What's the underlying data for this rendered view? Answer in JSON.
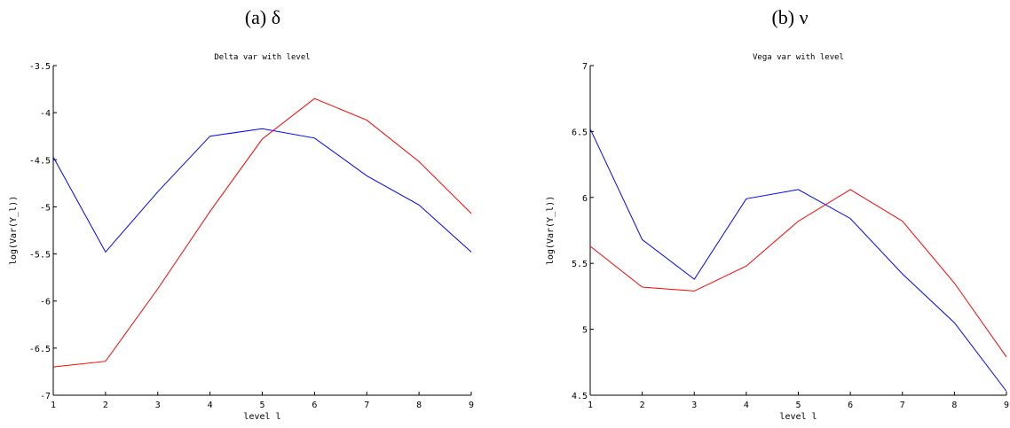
{
  "panels": [
    {
      "caption": "(a) δ",
      "chart_data": {
        "type": "line",
        "title": "Delta var with level",
        "xlabel": "level l",
        "ylabel": "log(Var(Y_l))",
        "x": [
          1,
          2,
          3,
          4,
          5,
          6,
          7,
          8,
          9
        ],
        "xlim": [
          1,
          9
        ],
        "ylim": [
          -7,
          -3.5
        ],
        "xticks": [
          "1",
          "2",
          "3",
          "4",
          "5",
          "6",
          "7",
          "8",
          "9"
        ],
        "yticks": [
          -7,
          -6.5,
          -6,
          -5.5,
          -5,
          -4.5,
          -4,
          -3.5
        ],
        "ytick_labels": [
          "-7",
          "-6.5",
          "-6",
          "-5.5",
          "-5",
          "-4.5",
          "-4",
          "-3.5"
        ],
        "grid": false,
        "series": [
          {
            "color": "#0000ff",
            "values": [
              -4.47,
              -5.48,
              -4.84,
              -4.25,
              -4.17,
              -4.27,
              -4.67,
              -4.98,
              -5.48
            ]
          },
          {
            "color": "#ff0000",
            "values": [
              -6.7,
              -6.64,
              -5.87,
              -5.05,
              -4.28,
              -3.85,
              -4.08,
              -4.52,
              -5.07
            ]
          }
        ]
      }
    },
    {
      "caption": "(b) ν",
      "chart_data": {
        "type": "line",
        "title": "Vega var with level",
        "xlabel": "level l",
        "ylabel": "log(Var(Y_l))",
        "x": [
          1,
          2,
          3,
          4,
          5,
          6,
          7,
          8,
          9
        ],
        "xlim": [
          1,
          9
        ],
        "ylim": [
          4.5,
          7
        ],
        "xticks": [
          "1",
          "2",
          "3",
          "4",
          "5",
          "6",
          "7",
          "8",
          "9"
        ],
        "yticks": [
          4.5,
          5,
          5.5,
          6,
          6.5,
          7
        ],
        "ytick_labels": [
          "4.5",
          "5",
          "5.5",
          "6",
          "6.5",
          "7"
        ],
        "grid": false,
        "series": [
          {
            "color": "#0000ff",
            "values": [
              6.52,
              5.68,
              5.38,
              5.99,
              6.06,
              5.84,
              5.42,
              5.05,
              4.53
            ]
          },
          {
            "color": "#ff0000",
            "values": [
              5.63,
              5.32,
              5.29,
              5.48,
              5.82,
              6.06,
              5.82,
              5.35,
              4.79
            ]
          }
        ]
      }
    }
  ]
}
